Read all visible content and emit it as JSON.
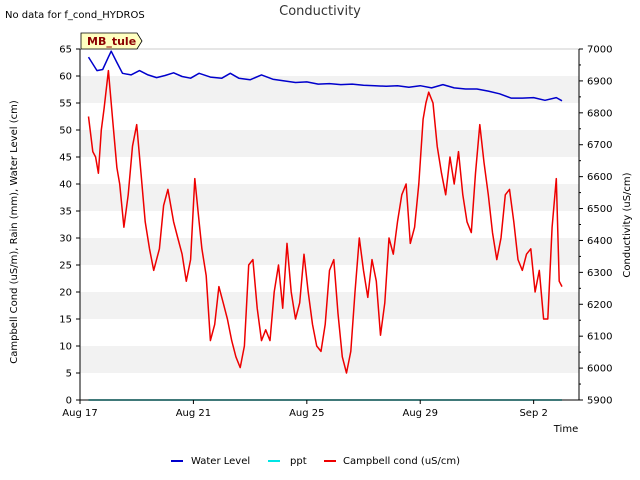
{
  "chart_data": {
    "type": "line",
    "title": "Conductivity",
    "no_data_note": "No data for f_cond_HYDROS",
    "site_label": "MB_tule",
    "xlabel": "Time",
    "ylabel_left": "Campbell Cond (uS/m), Rain (mm), Water Level (cm)",
    "ylabel_right": "Conductivity (uS/cm)",
    "x_unit": "days since Aug 17",
    "xlim": [
      0,
      17.6
    ],
    "ylim_left": [
      0,
      65
    ],
    "ylim_right": [
      5900,
      7000
    ],
    "x_ticks": [
      {
        "x": 0,
        "label": "Aug 17"
      },
      {
        "x": 4,
        "label": "Aug 21"
      },
      {
        "x": 8,
        "label": "Aug 25"
      },
      {
        "x": 12,
        "label": "Aug 29"
      },
      {
        "x": 16,
        "label": "Sep 2"
      }
    ],
    "y_ticks_left": [
      0,
      5,
      10,
      15,
      20,
      25,
      30,
      35,
      40,
      45,
      50,
      55,
      60,
      65
    ],
    "y_ticks_left_labels": [
      "0",
      "5",
      "10",
      "15",
      "20",
      "25",
      "30",
      "35",
      "40",
      "45",
      "50",
      "55",
      "60",
      "65"
    ],
    "y_ticks_right": [
      5900,
      6000,
      6100,
      6200,
      6300,
      6400,
      6500,
      6600,
      6700,
      6800,
      6900,
      7000
    ],
    "y_ticks_right_labels": [
      "5900",
      "6000",
      "6100",
      "6200",
      "6300",
      "6400",
      "6500",
      "6600",
      "6700",
      "6800",
      "6900",
      "7000"
    ],
    "series": [
      {
        "name": "Water Level",
        "color": "#0000cc",
        "axis": "left",
        "x": [
          0.3,
          0.6,
          0.8,
          1.0,
          1.1,
          1.3,
          1.5,
          1.8,
          2.1,
          2.4,
          2.7,
          3.0,
          3.3,
          3.6,
          3.9,
          4.2,
          4.6,
          5.0,
          5.3,
          5.6,
          6.0,
          6.4,
          6.8,
          7.2,
          7.6,
          8.0,
          8.4,
          8.8,
          9.2,
          9.6,
          10.0,
          10.4,
          10.8,
          11.2,
          11.6,
          12.0,
          12.4,
          12.8,
          13.2,
          13.6,
          14.0,
          14.4,
          14.8,
          15.2,
          15.6,
          16.0,
          16.4,
          16.8,
          17.0
        ],
        "values": [
          63.5,
          61.0,
          61.2,
          63.5,
          64.6,
          62.5,
          60.5,
          60.2,
          61.0,
          60.2,
          59.7,
          60.1,
          60.6,
          59.9,
          59.6,
          60.5,
          59.8,
          59.6,
          60.5,
          59.6,
          59.3,
          60.2,
          59.4,
          59.1,
          58.8,
          58.9,
          58.5,
          58.6,
          58.4,
          58.5,
          58.3,
          58.2,
          58.1,
          58.2,
          57.9,
          58.2,
          57.8,
          58.4,
          57.8,
          57.6,
          57.6,
          57.2,
          56.7,
          55.9,
          55.9,
          56.0,
          55.5,
          56.0,
          55.4
        ]
      },
      {
        "name": "ppt",
        "color": "#00e5e5",
        "axis": "left",
        "x": [
          0.3,
          17.0
        ],
        "values": [
          0,
          0
        ]
      },
      {
        "name": "Campbell cond (uS/cm)",
        "color": "#ee0000",
        "axis": "left",
        "x": [
          0.3,
          0.45,
          0.55,
          0.65,
          0.75,
          0.85,
          1.0,
          1.15,
          1.3,
          1.4,
          1.55,
          1.7,
          1.85,
          2.0,
          2.15,
          2.3,
          2.45,
          2.6,
          2.8,
          2.95,
          3.1,
          3.3,
          3.45,
          3.6,
          3.75,
          3.9,
          4.05,
          4.2,
          4.3,
          4.45,
          4.6,
          4.75,
          4.9,
          5.05,
          5.2,
          5.35,
          5.5,
          5.65,
          5.8,
          5.95,
          6.1,
          6.25,
          6.4,
          6.55,
          6.7,
          6.85,
          7.0,
          7.15,
          7.3,
          7.45,
          7.6,
          7.75,
          7.9,
          8.05,
          8.2,
          8.35,
          8.5,
          8.65,
          8.8,
          8.95,
          9.1,
          9.25,
          9.4,
          9.55,
          9.7,
          9.85,
          10.0,
          10.15,
          10.3,
          10.45,
          10.6,
          10.75,
          10.9,
          11.05,
          11.2,
          11.35,
          11.5,
          11.65,
          11.8,
          11.95,
          12.1,
          12.2,
          12.3,
          12.45,
          12.6,
          12.75,
          12.9,
          13.05,
          13.2,
          13.35,
          13.5,
          13.65,
          13.8,
          13.95,
          14.1,
          14.25,
          14.4,
          14.55,
          14.7,
          14.85,
          15.0,
          15.15,
          15.3,
          15.45,
          15.6,
          15.75,
          15.9,
          16.05,
          16.2,
          16.35,
          16.5,
          16.65,
          16.8,
          16.9,
          17.0
        ],
        "values": [
          52.5,
          46,
          45,
          42,
          50,
          54,
          61,
          52,
          43,
          40,
          32,
          38,
          47,
          51,
          42,
          33,
          28,
          24,
          28,
          36,
          39,
          33,
          30,
          27,
          22,
          26,
          41,
          33,
          28,
          23,
          11,
          14,
          21,
          18,
          15,
          11,
          8,
          6,
          10,
          25,
          26,
          17,
          11,
          13,
          11,
          20,
          25,
          17,
          29,
          20,
          15,
          18,
          27,
          20,
          14,
          10,
          9,
          14,
          24,
          26,
          16,
          8,
          5,
          9,
          20,
          30,
          24,
          19,
          26,
          22,
          12,
          18,
          30,
          27,
          33,
          38,
          40,
          29,
          32,
          40,
          52,
          55,
          57,
          55,
          47,
          42,
          38,
          45,
          40,
          46,
          38,
          33,
          31,
          42,
          51,
          44,
          38,
          31,
          26,
          30,
          38,
          39,
          33,
          26,
          24,
          27,
          28,
          20,
          24,
          15,
          15,
          32,
          41,
          22,
          21
        ]
      }
    ],
    "legend": {
      "position": "bottom-center",
      "entries": [
        "Water Level",
        "ppt",
        "Campbell cond (uS/cm)"
      ]
    }
  }
}
